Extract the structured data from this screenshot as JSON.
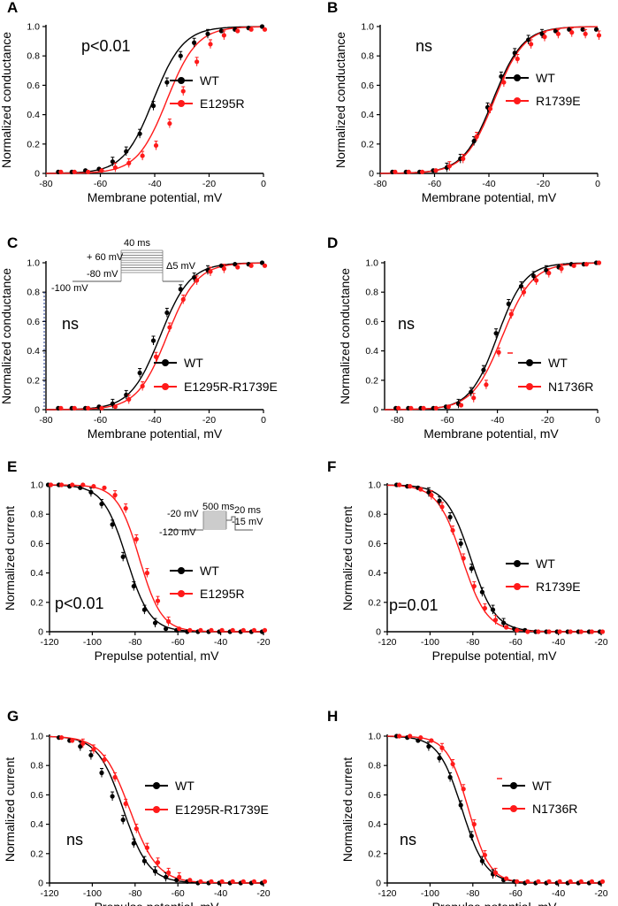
{
  "colors": {
    "wt": "#000000",
    "mutant": "#ff1a1a",
    "axis": "#000000"
  },
  "chart_data": [
    {
      "panel": "A",
      "type": "scatter",
      "kind": "activation",
      "xlabel": "Membrane potential, mV",
      "ylabel": "Normalized conductance",
      "xlim": [
        -80,
        0
      ],
      "ylim": [
        0,
        1.0
      ],
      "xticks": [
        "-80",
        "-60",
        "-40",
        "-20",
        "0"
      ],
      "yticks": [
        "0",
        "0.2",
        "0.4",
        "0.6",
        "0.8",
        "1.0"
      ],
      "stat": "p<0.01",
      "series": [
        {
          "name": "WT",
          "color": "#000000",
          "v_half": -40.5,
          "slope": 5.5,
          "x": [
            -75,
            -70,
            -65,
            -60,
            -55,
            -50,
            -45,
            -40,
            -35,
            -30,
            -25,
            -20,
            -15,
            -10,
            -5,
            0
          ],
          "y": [
            0.01,
            0.01,
            0.02,
            0.03,
            0.08,
            0.15,
            0.27,
            0.46,
            0.62,
            0.8,
            0.89,
            0.95,
            0.97,
            0.98,
            0.99,
            1.0
          ]
        },
        {
          "name": "E1295R",
          "color": "#ff1a1a",
          "v_half": -35.5,
          "slope": 5.5,
          "x": [
            -75,
            -70,
            -65,
            -60,
            -55,
            -50,
            -45,
            -40,
            -35,
            -30,
            -25,
            -20,
            -15,
            -10,
            -5,
            0
          ],
          "y": [
            0.01,
            0.01,
            0.01,
            0.02,
            0.04,
            0.07,
            0.12,
            0.19,
            0.34,
            0.56,
            0.76,
            0.88,
            0.94,
            0.97,
            0.98,
            0.98
          ]
        }
      ]
    },
    {
      "panel": "B",
      "type": "scatter",
      "kind": "activation",
      "xlabel": "Membrane potential, mV",
      "ylabel": "Normalized conductance",
      "xlim": [
        -80,
        0
      ],
      "ylim": [
        0,
        1.0
      ],
      "xticks": [
        "-80",
        "-60",
        "-40",
        "-20",
        "0"
      ],
      "yticks": [
        "0",
        "0.2",
        "0.4",
        "0.6",
        "0.8",
        "1.0"
      ],
      "stat": "ns",
      "series": [
        {
          "name": "WT",
          "color": "#000000",
          "v_half": -38.5,
          "slope": 5.5,
          "x": [
            -75,
            -70,
            -65,
            -60,
            -55,
            -50,
            -45,
            -40,
            -35,
            -30,
            -25,
            -20,
            -15,
            -10,
            -5,
            0
          ],
          "y": [
            0.01,
            0.01,
            0.01,
            0.02,
            0.04,
            0.1,
            0.22,
            0.45,
            0.66,
            0.82,
            0.91,
            0.95,
            0.97,
            0.98,
            0.98,
            0.98
          ]
        },
        {
          "name": "R1739E",
          "color": "#ff1a1a",
          "v_half": -38.0,
          "slope": 5.5,
          "x": [
            -75,
            -70,
            -65,
            -60,
            -55,
            -50,
            -45,
            -40,
            -35,
            -30,
            -25,
            -20,
            -15,
            -10,
            -5,
            0
          ],
          "y": [
            0.01,
            0.01,
            0.01,
            0.02,
            0.05,
            0.1,
            0.25,
            0.44,
            0.62,
            0.78,
            0.88,
            0.93,
            0.95,
            0.96,
            0.95,
            0.94
          ]
        }
      ]
    },
    {
      "panel": "C",
      "type": "scatter",
      "kind": "activation",
      "xlabel": "Membrane potential, mV",
      "ylabel": "Normalized conductance",
      "xlim": [
        -80,
        0
      ],
      "ylim": [
        0,
        1.0
      ],
      "xticks": [
        "-80",
        "-60",
        "-40",
        "-20",
        "0"
      ],
      "yticks": [
        "0",
        "0.2",
        "0.4",
        "0.6",
        "0.8",
        "1.0"
      ],
      "stat": "ns",
      "protocol": {
        "v_hold": "-100 mV",
        "v_pre": "-80 mV",
        "v_max": "+ 60 mV",
        "duration": "40 ms",
        "step": "Δ5 mV"
      },
      "series": [
        {
          "name": "WT",
          "color": "#000000",
          "v_half": -38.0,
          "slope": 5.5,
          "x": [
            -75,
            -70,
            -65,
            -60,
            -55,
            -50,
            -45,
            -40,
            -35,
            -30,
            -25,
            -20,
            -15,
            -10,
            -5,
            0
          ],
          "y": [
            0.01,
            0.01,
            0.01,
            0.02,
            0.04,
            0.1,
            0.25,
            0.47,
            0.66,
            0.82,
            0.9,
            0.95,
            0.98,
            0.99,
            0.99,
            1.0
          ]
        },
        {
          "name": "E1295R-R1739E",
          "color": "#ff1a1a",
          "v_half": -35.5,
          "slope": 5.5,
          "x": [
            -75,
            -70,
            -65,
            -60,
            -55,
            -50,
            -45,
            -40,
            -35,
            -30,
            -25,
            -20,
            -15,
            -10,
            -5,
            0
          ],
          "y": [
            0.01,
            0.01,
            0.01,
            0.01,
            0.02,
            0.07,
            0.16,
            0.36,
            0.56,
            0.75,
            0.88,
            0.94,
            0.96,
            0.97,
            0.98,
            0.98
          ]
        }
      ]
    },
    {
      "panel": "D",
      "type": "scatter",
      "kind": "activation",
      "xlabel": "Membrane potential, mV",
      "ylabel": "Normalized conductance",
      "xlim": [
        -85,
        0
      ],
      "ylim": [
        0,
        1.0
      ],
      "xticks": [
        "-80",
        "-60",
        "-40",
        "-20",
        "0"
      ],
      "yticks": [
        "0",
        "0.2",
        "0.4",
        "0.6",
        "0.8",
        "1.0"
      ],
      "stat": "ns",
      "series": [
        {
          "name": "WT",
          "color": "#000000",
          "v_half": -40.0,
          "slope": 5.5,
          "x": [
            -80,
            -75,
            -70,
            -65,
            -60,
            -55,
            -50,
            -45,
            -40,
            -35,
            -30,
            -25,
            -20,
            -15,
            -10,
            -5,
            0
          ],
          "y": [
            0.01,
            0.01,
            0.01,
            0.01,
            0.02,
            0.04,
            0.12,
            0.27,
            0.52,
            0.72,
            0.84,
            0.91,
            0.95,
            0.97,
            0.99,
            0.99,
            1.0
          ]
        },
        {
          "name": "N1736R",
          "color": "#ff1a1a",
          "v_half": -38.0,
          "slope": 6.0,
          "x": [
            -80,
            -75,
            -70,
            -65,
            -60,
            -55,
            -50,
            -45,
            -40,
            -35,
            -30,
            -25,
            -20,
            -15,
            -10,
            -5,
            0
          ],
          "y": [
            0.01,
            0.01,
            0.01,
            0.01,
            0.02,
            0.03,
            0.08,
            0.17,
            0.39,
            0.65,
            0.8,
            0.88,
            0.93,
            0.96,
            0.98,
            0.99,
            1.0
          ]
        }
      ]
    },
    {
      "panel": "E",
      "type": "scatter",
      "kind": "inactivation",
      "xlabel": "Prepulse potential, mV",
      "ylabel": "Normalized current",
      "xlim": [
        -120,
        -20
      ],
      "ylim": [
        0,
        1.0
      ],
      "xticks": [
        "-120",
        "-100",
        "-80",
        "-60",
        "-40",
        "-20"
      ],
      "yticks": [
        "0",
        "0.2",
        "0.4",
        "0.6",
        "0.8",
        "1.0"
      ],
      "stat": "p<0.01",
      "protocol": {
        "v_pre": "-20 mV",
        "v_hold": "-120 mV",
        "duration": "500 ms",
        "test_duration": "20 ms",
        "v_test": "-15 mV"
      },
      "series": [
        {
          "name": "WT",
          "color": "#000000",
          "v_half": -84.0,
          "slope": 5.5,
          "x": [
            -120,
            -115,
            -110,
            -105,
            -100,
            -95,
            -90,
            -85,
            -80,
            -75,
            -70,
            -65,
            -60,
            -55,
            -50,
            -45,
            -40,
            -35,
            -30,
            -25,
            -20
          ],
          "y": [
            1.0,
            1.0,
            0.99,
            0.98,
            0.95,
            0.87,
            0.73,
            0.51,
            0.31,
            0.15,
            0.06,
            0.02,
            0.01,
            0.0,
            0.0,
            0.0,
            0.0,
            0.0,
            0.0,
            0.0,
            0.0
          ]
        },
        {
          "name": "E1295R",
          "color": "#ff1a1a",
          "v_half": -78.0,
          "slope": 5.2,
          "x": [
            -120,
            -115,
            -110,
            -105,
            -100,
            -95,
            -90,
            -85,
            -80,
            -75,
            -70,
            -65,
            -60,
            -55,
            -50,
            -45,
            -40,
            -35,
            -30,
            -25,
            -20
          ],
          "y": [
            1.0,
            1.0,
            1.0,
            1.0,
            0.99,
            0.98,
            0.93,
            0.84,
            0.63,
            0.4,
            0.21,
            0.07,
            0.02,
            0.01,
            0.01,
            0.01,
            0.01,
            0.01,
            0.01,
            0.01,
            0.01
          ]
        }
      ]
    },
    {
      "panel": "F",
      "type": "scatter",
      "kind": "inactivation",
      "xlabel": "Prepulse potential, mV",
      "ylabel": "Normalized current",
      "xlim": [
        -120,
        -20
      ],
      "ylim": [
        0,
        1.0
      ],
      "xticks": [
        "-120",
        "-100",
        "-80",
        "-60",
        "-40",
        "-20"
      ],
      "yticks": [
        "0",
        "0.2",
        "0.4",
        "0.6",
        "0.8",
        "1.0"
      ],
      "stat": "p=0.01",
      "series": [
        {
          "name": "WT",
          "color": "#000000",
          "v_half": -81.0,
          "slope": 5.8,
          "x": [
            -115,
            -110,
            -105,
            -100,
            -95,
            -90,
            -85,
            -80,
            -75,
            -70,
            -65,
            -60,
            -55,
            -50,
            -45,
            -40,
            -35,
            -30,
            -25,
            -20
          ],
          "y": [
            1.0,
            0.99,
            0.98,
            0.95,
            0.89,
            0.78,
            0.6,
            0.43,
            0.27,
            0.15,
            0.06,
            0.02,
            0.01,
            0.0,
            0.0,
            0.0,
            0.0,
            0.0,
            0.0,
            0.0
          ]
        },
        {
          "name": "R1739E",
          "color": "#ff1a1a",
          "v_half": -85.0,
          "slope": 5.8,
          "x": [
            -115,
            -110,
            -105,
            -100,
            -95,
            -90,
            -85,
            -80,
            -75,
            -70,
            -65,
            -60,
            -55,
            -50,
            -45,
            -40,
            -35,
            -30,
            -25,
            -20
          ],
          "y": [
            1.0,
            0.99,
            0.97,
            0.93,
            0.85,
            0.69,
            0.5,
            0.31,
            0.16,
            0.08,
            0.03,
            0.01,
            0.0,
            0.0,
            0.0,
            0.0,
            0.0,
            0.0,
            0.0,
            0.0
          ]
        }
      ]
    },
    {
      "panel": "G",
      "type": "scatter",
      "kind": "inactivation",
      "xlabel": "Prepulse potential, mV",
      "ylabel": "Normalized current",
      "xlim": [
        -120,
        -20
      ],
      "ylim": [
        0,
        1.0
      ],
      "xticks": [
        "-120",
        "-100",
        "-80",
        "-60",
        "-40",
        "-20"
      ],
      "yticks": [
        "0",
        "0.2",
        "0.4",
        "0.6",
        "0.8",
        "1.0"
      ],
      "stat": "ns",
      "series": [
        {
          "name": "WT",
          "color": "#000000",
          "v_half": -85.5,
          "slope": 6.0,
          "x": [
            -115,
            -110,
            -105,
            -100,
            -95,
            -90,
            -85,
            -80,
            -75,
            -70,
            -65,
            -60,
            -55,
            -50,
            -45,
            -40,
            -35,
            -30,
            -25,
            -20
          ],
          "y": [
            0.99,
            0.97,
            0.93,
            0.87,
            0.75,
            0.59,
            0.43,
            0.27,
            0.15,
            0.08,
            0.04,
            0.02,
            0.01,
            0.0,
            0.0,
            0.0,
            0.0,
            0.0,
            0.0,
            0.0
          ]
        },
        {
          "name": "E1295R-R1739E",
          "color": "#ff1a1a",
          "v_half": -82.5,
          "slope": 6.5,
          "x": [
            -115,
            -110,
            -105,
            -100,
            -95,
            -90,
            -85,
            -80,
            -75,
            -70,
            -65,
            -60,
            -55,
            -50,
            -45,
            -40,
            -35,
            -30,
            -25,
            -20
          ],
          "y": [
            0.99,
            0.97,
            0.95,
            0.91,
            0.84,
            0.72,
            0.54,
            0.37,
            0.24,
            0.14,
            0.07,
            0.04,
            0.02,
            0.01,
            0.01,
            0.01,
            0.01,
            0.01,
            0.01,
            0.01
          ]
        }
      ]
    },
    {
      "panel": "H",
      "type": "scatter",
      "kind": "inactivation",
      "xlabel": "Prepulse potential, mV",
      "ylabel": "Normalized current",
      "xlim": [
        -120,
        -20
      ],
      "ylim": [
        0,
        1.0
      ],
      "xticks": [
        "-120",
        "-100",
        "-80",
        "-60",
        "-40",
        "-20"
      ],
      "yticks": [
        "0",
        "0.2",
        "0.4",
        "0.6",
        "0.8",
        "1.0"
      ],
      "stat": "ns",
      "series": [
        {
          "name": "WT",
          "color": "#000000",
          "v_half": -85.0,
          "slope": 5.5,
          "x": [
            -115,
            -110,
            -105,
            -100,
            -95,
            -90,
            -85,
            -80,
            -75,
            -70,
            -65,
            -60,
            -55,
            -50,
            -45,
            -40,
            -35,
            -30,
            -25,
            -20
          ],
          "y": [
            1.0,
            0.99,
            0.97,
            0.93,
            0.85,
            0.72,
            0.53,
            0.32,
            0.15,
            0.06,
            0.02,
            0.01,
            0.0,
            0.0,
            0.0,
            0.0,
            0.0,
            0.0,
            0.0,
            0.0
          ]
        },
        {
          "name": "N1736R",
          "color": "#ff1a1a",
          "v_half": -82.0,
          "slope": 5.0,
          "x": [
            -115,
            -110,
            -105,
            -100,
            -95,
            -90,
            -85,
            -80,
            -75,
            -70,
            -65,
            -60,
            -55,
            -50,
            -45,
            -40,
            -35,
            -30,
            -25,
            -20
          ],
          "y": [
            1.0,
            1.0,
            0.99,
            0.97,
            0.92,
            0.81,
            0.64,
            0.4,
            0.19,
            0.07,
            0.03,
            0.01,
            0.01,
            0.01,
            0.01,
            0.01,
            0.01,
            0.01,
            0.01,
            0.01
          ]
        }
      ]
    }
  ]
}
